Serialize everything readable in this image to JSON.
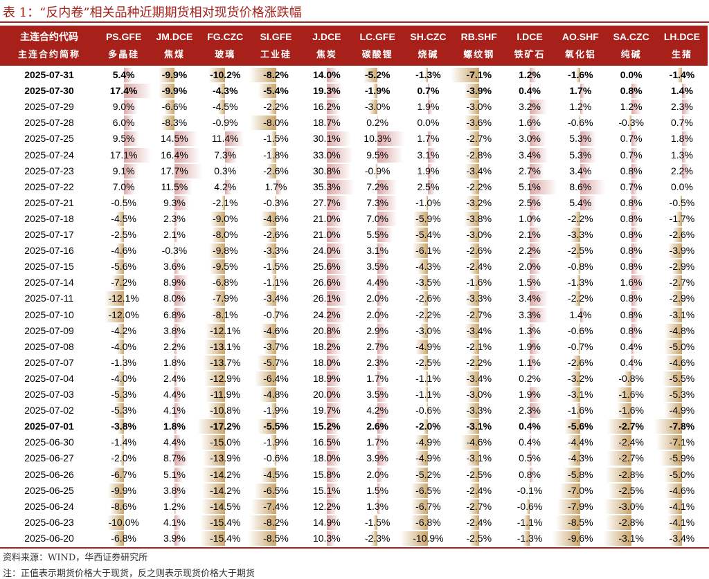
{
  "title": "表 1：“反内卷”相关品种近期期货相对现货价格涨跌幅",
  "header": {
    "code_label": "主连合约代码",
    "name_label": "主连合约简称",
    "codes": [
      "PS.GFE",
      "JM.DCE",
      "FG.CZC",
      "SI.GFE",
      "J.DCE",
      "LC.GFE",
      "SH.CZC",
      "RB.SHF",
      "I.DCE",
      "AO.SHF",
      "SA.CZC",
      "LH.DCE"
    ],
    "names": [
      "多晶硅",
      "焦煤",
      "玻璃",
      "工业硅",
      "焦炭",
      "碳酸锂",
      "烧碱",
      "螺纹钢",
      "铁矿石",
      "氧化铝",
      "纯碱",
      "生猪"
    ]
  },
  "colors": {
    "header_bg": "#A8201A",
    "positive_bar": "#DDA8A8",
    "negative_bar": "#C9A46A",
    "rule": "#A8201A"
  },
  "footnotes": {
    "source": "资料来源：WIND，华西证券研究所",
    "note": "注：正值表示期货价格大于现货，反之则表示现货价格大于期货"
  },
  "chart_data": {
    "type": "table",
    "unit": "%",
    "columns": [
      "PS.GFE",
      "JM.DCE",
      "FG.CZC",
      "SI.GFE",
      "J.DCE",
      "LC.GFE",
      "SH.CZC",
      "RB.SHF",
      "I.DCE",
      "AO.SHF",
      "SA.CZC",
      "LH.DCE"
    ],
    "bold_dates": [
      "2025-07-31",
      "2025-07-30",
      "2025-07-01"
    ],
    "rows": [
      {
        "date": "2025-07-31",
        "values": [
          5.4,
          -9.9,
          -10.2,
          -8.2,
          14.0,
          -5.2,
          -1.3,
          -7.1,
          1.2,
          -1.6,
          0.0,
          -1.4
        ]
      },
      {
        "date": "2025-07-30",
        "values": [
          17.4,
          -9.9,
          -4.3,
          -5.4,
          19.3,
          -1.9,
          0.7,
          -3.9,
          0.4,
          1.7,
          0.8,
          1.4
        ]
      },
      {
        "date": "2025-07-29",
        "values": [
          9.0,
          -6.6,
          -4.5,
          -2.2,
          16.2,
          -3.0,
          1.9,
          -3.0,
          3.2,
          1.2,
          1.2,
          2.3
        ]
      },
      {
        "date": "2025-07-28",
        "values": [
          6.0,
          -8.3,
          -0.9,
          -8.0,
          18.7,
          0.2,
          0.0,
          -3.6,
          1.6,
          -0.6,
          -0.3,
          0.7
        ]
      },
      {
        "date": "2025-07-25",
        "values": [
          9.5,
          14.5,
          11.4,
          -1.5,
          30.1,
          10.3,
          1.7,
          -2.7,
          3.0,
          5.3,
          0.7,
          1.8
        ]
      },
      {
        "date": "2025-07-24",
        "values": [
          17.1,
          16.4,
          7.3,
          -1.8,
          33.0,
          9.5,
          3.1,
          -2.8,
          3.4,
          5.3,
          0.7,
          1.3
        ]
      },
      {
        "date": "2025-07-23",
        "values": [
          9.1,
          17.7,
          0.3,
          -2.6,
          30.8,
          -0.9,
          1.9,
          -3.4,
          2.7,
          3.4,
          0.8,
          2.2
        ]
      },
      {
        "date": "2025-07-22",
        "values": [
          7.0,
          11.5,
          4.2,
          1.7,
          35.3,
          7.2,
          2.5,
          -2.2,
          5.1,
          8.6,
          0.7,
          0.0
        ]
      },
      {
        "date": "2025-07-21",
        "values": [
          -0.5,
          9.3,
          -2.1,
          -0.3,
          27.7,
          7.3,
          -1.0,
          -3.2,
          2.5,
          5.4,
          0.8,
          -0.5
        ]
      },
      {
        "date": "2025-07-18",
        "values": [
          -4.5,
          2.3,
          -9.0,
          -4.6,
          21.0,
          7.0,
          -5.9,
          -3.8,
          1.0,
          -2.2,
          0.8,
          -1.7
        ]
      },
      {
        "date": "2025-07-17",
        "values": [
          -2.5,
          2.1,
          -8.0,
          -2.6,
          21.0,
          5.5,
          -5.4,
          -3.0,
          2.1,
          -3.3,
          0.8,
          -2.6
        ]
      },
      {
        "date": "2025-07-16",
        "values": [
          -4.6,
          -0.3,
          -9.8,
          -3.3,
          24.0,
          3.1,
          -6.1,
          -2.6,
          2.2,
          -2.5,
          0.8,
          -3.9
        ]
      },
      {
        "date": "2025-07-15",
        "values": [
          -5.6,
          3.6,
          -9.5,
          -1.5,
          25.6,
          3.5,
          -4.3,
          -2.4,
          2.0,
          -0.8,
          0.8,
          -2.9
        ]
      },
      {
        "date": "2025-07-14",
        "values": [
          -7.2,
          8.9,
          -6.8,
          -1.1,
          26.6,
          4.4,
          -3.5,
          -1.6,
          1.5,
          -1.3,
          1.6,
          -2.7
        ]
      },
      {
        "date": "2025-07-11",
        "values": [
          -12.1,
          8.0,
          -7.9,
          -3.4,
          26.1,
          2.0,
          -2.6,
          -3.3,
          3.4,
          -2.2,
          0.8,
          -2.9
        ]
      },
      {
        "date": "2025-07-10",
        "values": [
          -12.0,
          6.8,
          -8.1,
          -0.7,
          24.2,
          2.0,
          -2.2,
          -2.7,
          3.3,
          1.4,
          0.8,
          -3.1
        ]
      },
      {
        "date": "2025-07-09",
        "values": [
          -4.2,
          3.8,
          -12.1,
          -4.6,
          20.8,
          2.9,
          -3.0,
          -3.4,
          1.3,
          -0.6,
          0.8,
          -4.8
        ]
      },
      {
        "date": "2025-07-08",
        "values": [
          -4.0,
          2.2,
          -13.1,
          -3.7,
          18.2,
          2.7,
          -4.9,
          -2.1,
          1.9,
          -0.7,
          0.4,
          -5.0
        ]
      },
      {
        "date": "2025-07-07",
        "values": [
          -1.3,
          1.8,
          -13.7,
          -5.7,
          18.0,
          2.3,
          -2.5,
          -2.2,
          1.1,
          -2.6,
          0.4,
          -4.6
        ]
      },
      {
        "date": "2025-07-04",
        "values": [
          -4.0,
          2.4,
          -12.9,
          -6.4,
          18.9,
          1.7,
          -1.1,
          -3.4,
          0.2,
          -3.2,
          -0.8,
          -5.5
        ]
      },
      {
        "date": "2025-07-03",
        "values": [
          -5.3,
          4.4,
          -11.9,
          -4.8,
          20.0,
          3.5,
          -1.1,
          -3.0,
          1.9,
          -3.1,
          -1.6,
          -5.3
        ]
      },
      {
        "date": "2025-07-02",
        "values": [
          -5.3,
          4.1,
          -10.8,
          -1.9,
          19.7,
          4.2,
          -0.6,
          -3.3,
          2.3,
          -1.6,
          -1.6,
          -4.9
        ]
      },
      {
        "date": "2025-07-01",
        "values": [
          -3.8,
          1.8,
          -17.2,
          -5.5,
          15.2,
          2.6,
          -2.0,
          -3.1,
          0.4,
          -5.6,
          -2.7,
          -7.8
        ]
      },
      {
        "date": "2025-06-30",
        "values": [
          -1.4,
          4.4,
          -15.0,
          -1.9,
          16.5,
          1.7,
          -4.9,
          -4.6,
          0.4,
          -4.4,
          -2.4,
          -7.1
        ]
      },
      {
        "date": "2025-06-27",
        "values": [
          -2.0,
          8.7,
          -13.9,
          -0.6,
          18.0,
          3.9,
          -4.9,
          -3.1,
          0.5,
          -4.3,
          -2.7,
          -5.9
        ]
      },
      {
        "date": "2025-06-26",
        "values": [
          -6.7,
          5.1,
          -14.2,
          -4.5,
          15.8,
          2.0,
          -5.2,
          -2.5,
          0.8,
          -5.8,
          -2.8,
          -5.0
        ]
      },
      {
        "date": "2025-06-25",
        "values": [
          -9.9,
          3.8,
          -14.2,
          -6.5,
          15.1,
          1.5,
          -6.5,
          -2.4,
          -0.1,
          -7.0,
          -2.5,
          -4.6
        ]
      },
      {
        "date": "2025-06-24",
        "values": [
          -8.6,
          1.2,
          -14.5,
          -7.4,
          12.2,
          1.3,
          -6.7,
          -2.7,
          -0.6,
          -7.9,
          -3.0,
          -4.1
        ]
      },
      {
        "date": "2025-06-23",
        "values": [
          -10.0,
          4.1,
          -15.4,
          -8.2,
          14.9,
          -1.5,
          -6.8,
          -2.4,
          -1.1,
          -8.5,
          -2.8,
          -4.1
        ]
      },
      {
        "date": "2025-06-20",
        "values": [
          -6.8,
          3.9,
          -15.4,
          -8.5,
          10.3,
          -2.3,
          -10.9,
          -2.5,
          -1.3,
          -9.6,
          -3.1,
          -3.4
        ]
      }
    ]
  }
}
